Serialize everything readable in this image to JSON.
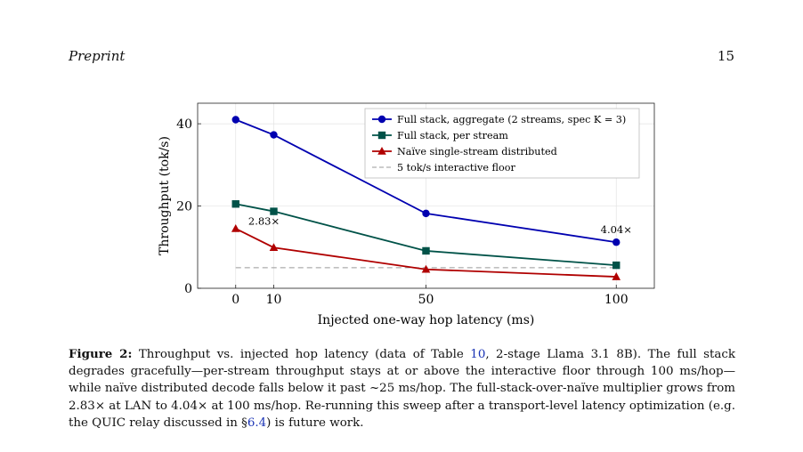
{
  "header": {
    "left": "Preprint",
    "page_number": "15"
  },
  "figure": {
    "caption_label": "Figure 2:",
    "caption_parts": [
      "Throughput vs. injected hop latency (data of Table ",
      "10",
      ", 2-stage Llama 3.1 8B). The full stack degrades gracefully—per-stream throughput stays at or above the interactive floor through 100 ms/hop—while naïve distributed decode falls below it past ~25 ms/hop. The full-stack-over-naïve multiplier grows from 2.83× at LAN to 4.04× at 100 ms/hop. Re-running this sweep after a transport-level latency optimization (e.g. the QUIC relay discussed in §",
      "6.4",
      ") is future work."
    ]
  },
  "chart_data": {
    "type": "line",
    "x": [
      0,
      10,
      50,
      100
    ],
    "xlabel": "Injected one-way hop latency (ms)",
    "ylabel": "Throughput (tok/s)",
    "xlim": [
      -10,
      110
    ],
    "ylim": [
      0,
      45
    ],
    "x_ticks": [
      0,
      10,
      50,
      100
    ],
    "y_ticks": [
      0,
      20,
      40
    ],
    "grid": true,
    "legend_position": "top-right",
    "series": [
      {
        "name": "Full stack, aggregate (2 streams, spec K = 3)",
        "values": [
          41.0,
          37.3,
          18.2,
          11.2
        ],
        "color": "#0000b0",
        "marker": "circle"
      },
      {
        "name": "Full stack, per stream",
        "values": [
          20.5,
          18.7,
          9.1,
          5.6
        ],
        "color": "#005248",
        "marker": "square"
      },
      {
        "name": "Naïve single-stream distributed",
        "values": [
          14.5,
          9.9,
          4.6,
          2.8
        ],
        "color": "#b00000",
        "marker": "triangle"
      }
    ],
    "reference_line": {
      "name": "5 tok/s interactive floor",
      "value": 5,
      "color": "#999999",
      "style": "dashed"
    },
    "annotations": [
      {
        "text": "2.83×",
        "x": 10
      },
      {
        "text": "4.04×",
        "x": 100
      }
    ]
  }
}
